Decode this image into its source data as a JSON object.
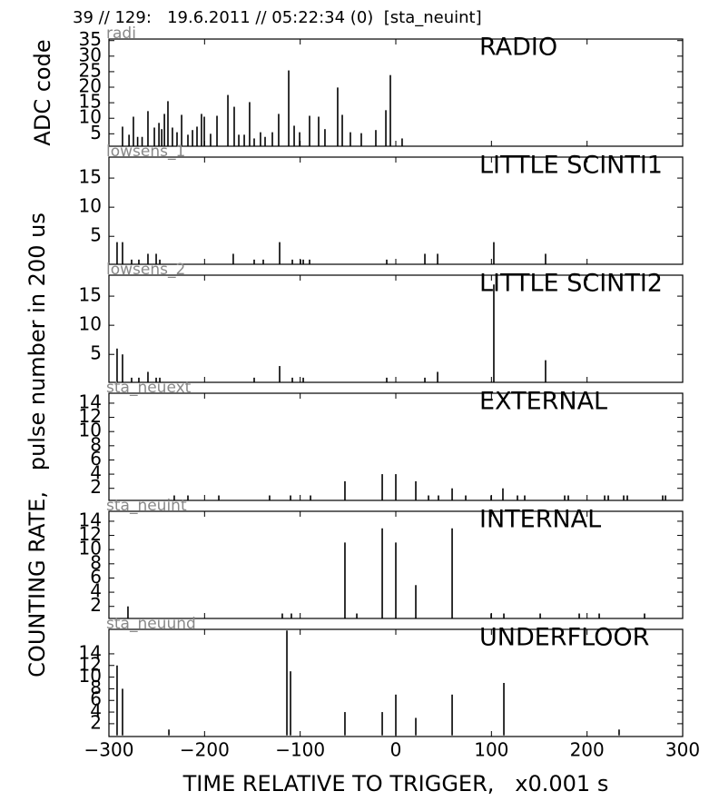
{
  "title": "39 // 129:   19.6.2011 // 05:22:34 (0)  [sta_neuint]",
  "ylabel": "COUNTING RATE,   pulse number in 200 us",
  "xlabel": "TIME RELATIVE TO TRIGGER,   x0.001 s",
  "chart_data": [
    {
      "type": "bar",
      "title": "RADIO",
      "label": "radi",
      "ylabel": "ADC code",
      "color": "#000000",
      "x": [
        -285.8,
        -279,
        -274.4,
        -270,
        -265.3,
        -259.2,
        -252.5,
        -247.7,
        -244.8,
        -242,
        -238.3,
        -233.6,
        -228.8,
        -224,
        -217.4,
        -212.6,
        -207.9,
        -203.2,
        -200.3,
        -193.7,
        -187,
        -175.6,
        -169,
        -164.2,
        -158.5,
        -152.9,
        -148.1,
        -141.5,
        -136.7,
        -129.1,
        -122.5,
        -112,
        -106.3,
        -100.6,
        -90.2,
        -80.7,
        -74.1,
        -60.8,
        -56,
        -47.5,
        -36.1,
        -20.9,
        -10.4,
        -5.7,
        6.6
      ],
      "values": [
        7.3,
        4.7,
        10.5,
        4,
        4,
        12.3,
        7,
        8.5,
        6.5,
        11.4,
        15.5,
        7,
        5.5,
        11.1,
        4.7,
        6.2,
        7.3,
        11.4,
        10.5,
        5,
        10.8,
        17.5,
        13.7,
        4.7,
        4.7,
        15.2,
        3.5,
        5.5,
        4,
        5.5,
        11.4,
        25.4,
        7.6,
        5.5,
        10.8,
        10.5,
        6.5,
        19.9,
        11.1,
        5.5,
        5.2,
        6.2,
        12.6,
        23.9,
        3.5
      ],
      "xlim": [
        -300,
        300
      ],
      "ylim": [
        1,
        35.5
      ],
      "yticks": [
        5,
        10,
        15,
        20,
        25,
        30,
        35
      ]
    },
    {
      "type": "bar",
      "title": "LITTLE SCINTI1",
      "label": "lowsens_1",
      "color": "#000000",
      "x": [
        -291.5,
        -285.8,
        -276.3,
        -268.7,
        -259.2,
        -250.6,
        -246.8,
        -170,
        -148.1,
        -138.6,
        -121.5,
        -108.2,
        -99.7,
        -96.8,
        -90.2,
        -9.5,
        30.4,
        43.7,
        102.5,
        156.6
      ],
      "values": [
        4,
        4,
        1,
        1,
        2,
        2,
        1,
        2,
        1,
        1,
        4,
        1,
        1,
        1,
        1,
        1,
        2,
        2,
        4,
        2
      ],
      "xlim": [
        -300,
        300
      ],
      "ylim": [
        0.2,
        18.6
      ],
      "yticks": [
        5,
        10,
        15
      ]
    },
    {
      "type": "bar",
      "title": "LITTLE SCINTI2",
      "label": "lowsens_2",
      "color": "#000000",
      "x": [
        -291.5,
        -285.8,
        -276.3,
        -268.7,
        -259.2,
        -250.6,
        -246.8,
        -148.1,
        -121.5,
        -108.2,
        -96.8,
        -9.5,
        30.4,
        43.7,
        102.5,
        156.6
      ],
      "values": [
        6,
        5,
        1,
        1,
        2,
        1,
        1,
        1,
        3,
        1,
        1,
        1,
        1,
        2,
        17,
        4
      ],
      "xlim": [
        -300,
        300
      ],
      "ylim": [
        0.2,
        18.6
      ],
      "yticks": [
        5,
        10,
        15
      ]
    },
    {
      "type": "bar",
      "title": "EXTERNAL",
      "label": "sta_neuext",
      "color": "#000000",
      "x": [
        -231.7,
        -217.4,
        -185.1,
        -132,
        -110.1,
        -89.2,
        -53.2,
        -14.2,
        0,
        20.9,
        34.2,
        44.6,
        58.9,
        73.1,
        99.7,
        112,
        127.2,
        134.8,
        176.6,
        180.4,
        218.4,
        222.2,
        238.3,
        242.1,
        279.1,
        282
      ],
      "values": [
        1,
        1,
        1,
        1,
        1,
        1,
        3,
        4,
        4,
        3,
        1,
        1,
        2,
        1,
        1,
        2,
        1,
        1,
        1,
        1,
        1,
        1,
        1,
        1,
        1,
        1
      ],
      "xlim": [
        -300,
        300
      ],
      "ylim": [
        0.3,
        15.4
      ],
      "yticks": [
        2,
        4,
        6,
        8,
        10,
        12,
        14
      ]
    },
    {
      "type": "bar",
      "title": "INTERNAL",
      "label": "sta_neuint",
      "color": "#000000",
      "x": [
        -280.1,
        -118.7,
        -109.2,
        -53.2,
        -40.8,
        -14.2,
        0,
        20.9,
        58.9,
        99.7,
        113,
        151,
        191.8,
        212.7,
        260.1
      ],
      "values": [
        2,
        1,
        1,
        11,
        1,
        13,
        11,
        5,
        13,
        1,
        1,
        1,
        1,
        1,
        1
      ],
      "xlim": [
        -300,
        300
      ],
      "ylim": [
        0.3,
        15.4
      ],
      "yticks": [
        2,
        4,
        6,
        8,
        10,
        12,
        14
      ]
    },
    {
      "type": "bar",
      "title": "UNDERFLOOR",
      "label": "sta_neuund",
      "color": "#000000",
      "x": [
        -291.5,
        -285.8,
        -237.3,
        -113.9,
        -110.1,
        -53.2,
        -14.2,
        0,
        20.9,
        58.9,
        113,
        233.5
      ],
      "values": [
        12,
        8,
        1,
        18,
        11,
        4,
        4,
        7,
        3,
        7,
        9,
        1
      ],
      "xlim": [
        -300,
        300
      ],
      "ylim": [
        -0.2,
        18.2
      ],
      "yticks": [
        2,
        4,
        6,
        8,
        10,
        12,
        14
      ],
      "xticks": [
        {
          "value": -300,
          "label": "−300"
        },
        {
          "value": -200,
          "label": "−200"
        },
        {
          "value": -100,
          "label": "−100"
        },
        0,
        100,
        200,
        300
      ]
    }
  ]
}
